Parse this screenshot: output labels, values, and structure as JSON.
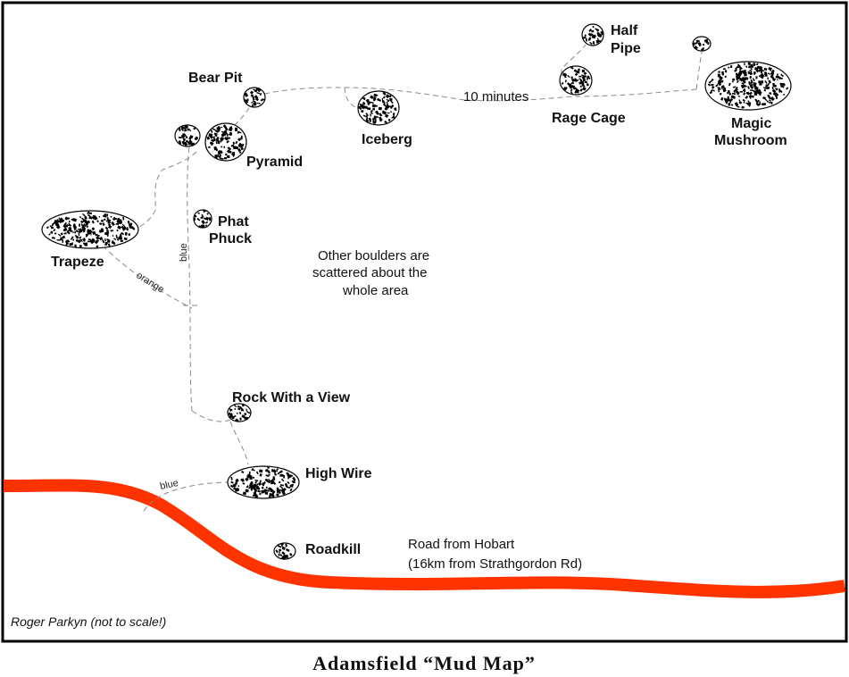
{
  "title": "Adamsfield “Mud Map”",
  "credit": "Roger Parkyn (not to scale!)",
  "colors": {
    "road": "#ff3300",
    "trail": "#8a8a8a",
    "border": "#000000"
  },
  "boulders": {
    "half_pipe": [
      "Half",
      "Pipe"
    ],
    "rage_cage": "Rage Cage",
    "magic_mushroom": [
      "Magic",
      "Mushroom"
    ],
    "bear_pit": "Bear Pit",
    "iceberg": "Iceberg",
    "pyramid": "Pyramid",
    "phat_phuck": [
      "Phat",
      "Phuck"
    ],
    "trapeze": "Trapeze",
    "rock_with_a_view": "Rock With a View",
    "high_wire": "High Wire",
    "roadkill": "Roadkill"
  },
  "trail_labels": {
    "ten_minutes": "10 minutes",
    "blue_vertical": "blue",
    "orange": "orange",
    "blue_road": "blue"
  },
  "notes": {
    "scattered": [
      "Other boulders are",
      "scattered about the",
      "whole area"
    ],
    "road": [
      "Road from Hobart",
      "(16km from Strathgordon Rd)"
    ]
  }
}
